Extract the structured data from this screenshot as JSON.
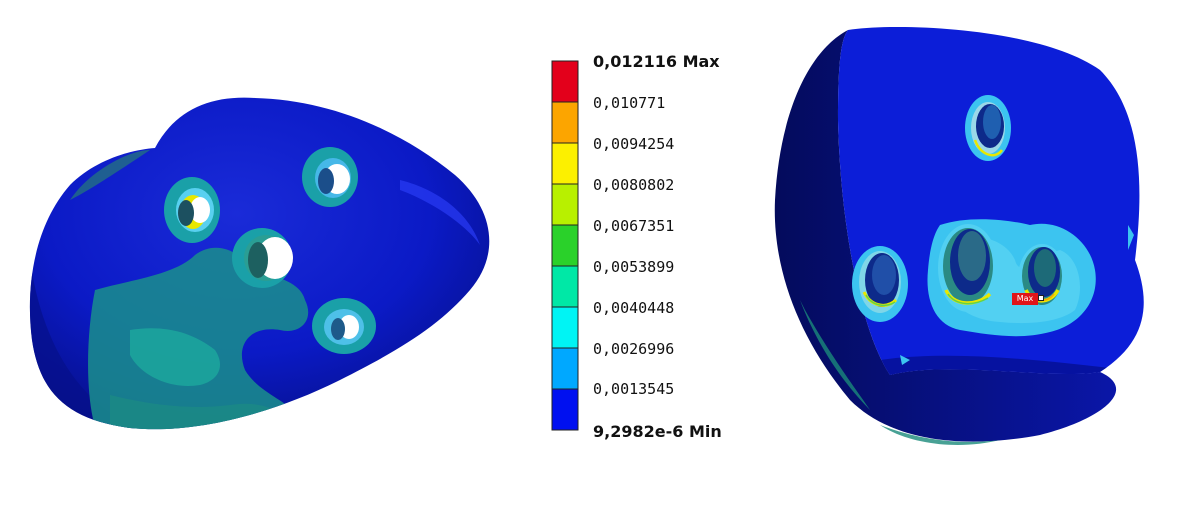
{
  "legend": {
    "max_label": "0,012116 Max",
    "min_label": "9,2982e-6 Min",
    "ticks": [
      "0,010771",
      "0,0094254",
      "0,0080802",
      "0,0067351",
      "0,0053899",
      "0,0040448",
      "0,0026996",
      "0,0013545"
    ],
    "band_colors": [
      "#e3001b",
      "#fca500",
      "#fcf000",
      "#b8f000",
      "#2ad12a",
      "#00e8a6",
      "#00f4f4",
      "#00a8ff",
      "#0010f0"
    ]
  },
  "colors": {
    "base_blue": "#0b1ac6",
    "deep_blue": "#050e86",
    "bright_blue": "#1a2cf0",
    "teal": "#1a9c96",
    "light_cyan": "#3cc6f0",
    "yellow": "#e8e800",
    "green": "#62d24a"
  },
  "marker": {
    "label": "Max"
  }
}
